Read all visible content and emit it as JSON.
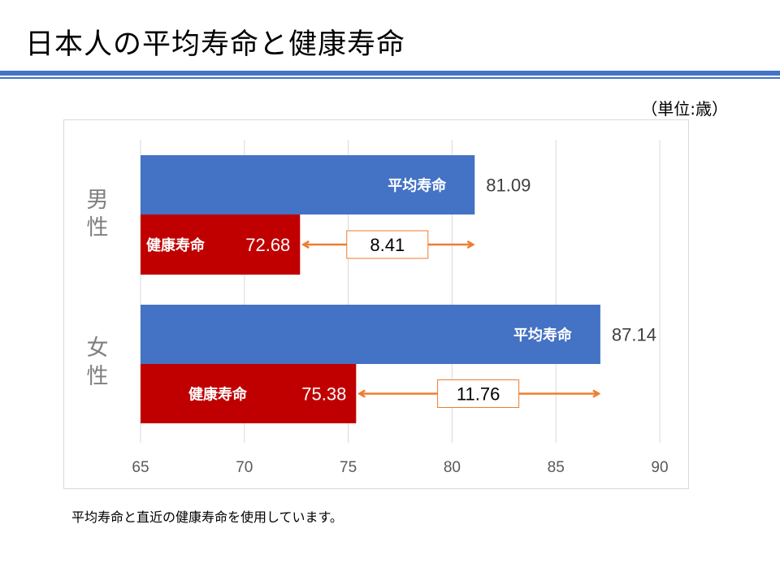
{
  "page": {
    "title": "日本人の平均寿命と健康寿命",
    "unit_label": "（単位:歳）",
    "caption": "平均寿命と直近の健康寿命を使用しています。"
  },
  "colors": {
    "rule": "#4472c4",
    "avg_bar": "#4472c4",
    "healthy_bar": "#c00000",
    "arrow": "#ed7d31",
    "grid": "#d9d9d9",
    "category_text": "#7f7f7f"
  },
  "chart_data": {
    "type": "bar",
    "orientation": "horizontal",
    "categories": [
      "男性",
      "女性"
    ],
    "series": [
      {
        "name": "平均寿命",
        "values": [
          81.09,
          87.14
        ]
      },
      {
        "name": "健康寿命",
        "values": [
          72.68,
          75.38
        ]
      }
    ],
    "data_labels": {
      "avg": [
        "81.09",
        "87.14"
      ],
      "healthy": [
        "72.68",
        "75.38"
      ]
    },
    "differences": [
      "8.41",
      "11.76"
    ],
    "xlim": [
      65,
      90
    ],
    "xticks": [
      "65",
      "70",
      "75",
      "80",
      "85",
      "90"
    ],
    "grid": true,
    "legend": "none"
  }
}
